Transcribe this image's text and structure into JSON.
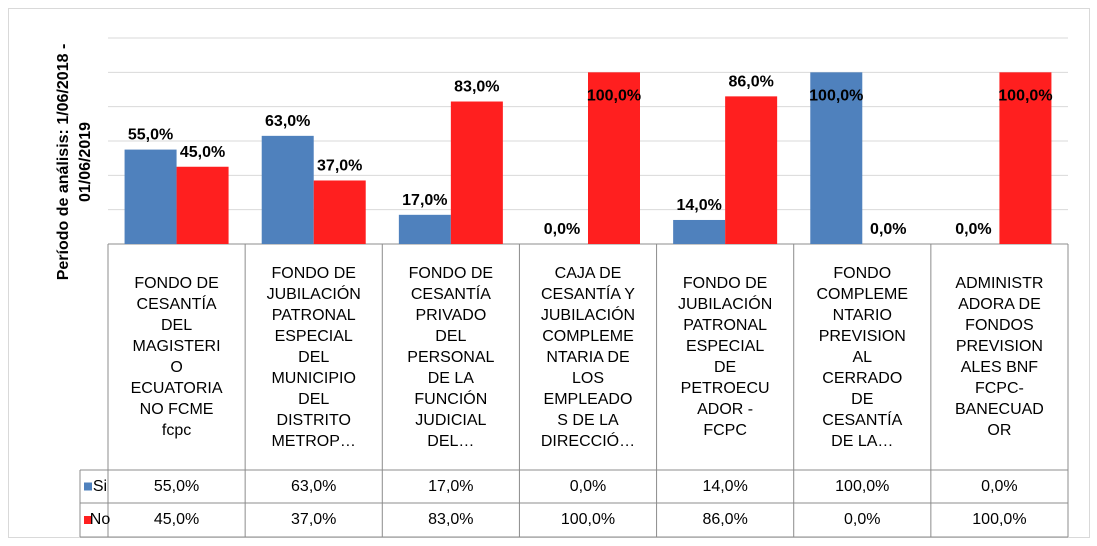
{
  "chart_data": {
    "type": "bar",
    "y_label": "Período de análisis: 1/06/2018 -\n01/06/2019",
    "categories": [
      "FONDO DE\nCESANTÍA\nDEL\nMAGISTERI\nO\nECUATORIA\nNO FCME\nfcpc",
      "FONDO DE\nJUBILACIÓN\nPATRONAL\nESPECIAL\nDEL\nMUNICIPIO\nDEL\nDISTRITO\nMETROP…",
      "FONDO DE\nCESANTÍA\nPRIVADO\nDEL\nPERSONAL\nDE LA\nFUNCIÓN\nJUDICIAL\nDEL…",
      "CAJA DE\nCESANTÍA Y\nJUBILACIÓN\nCOMPLEME\nNTARIA DE\nLOS\nEMPLEADO\nS DE LA\nDIRECCIÓ…",
      "FONDO DE\nJUBILACIÓN\nPATRONAL\nESPECIAL\nDE\nPETROECU\nADOR -\nFCPC",
      "FONDO\nCOMPLEME\nNTARIO\nPREVISION\nAL\nCERRADO\nDE\nCESANTÍA\nDE LA…",
      "ADMINISTR\nADORA DE\nFONDOS\nPREVISION\nALES BNF\nFCPC-\nBANECUAD\nOR"
    ],
    "series": [
      {
        "name": "Si",
        "color": "#4f81bd",
        "values": [
          55,
          63,
          17,
          0,
          14,
          100,
          0
        ],
        "value_labels": [
          "55,0%",
          "63,0%",
          "17,0%",
          "0,0%",
          "14,0%",
          "100,0%",
          "0,0%"
        ]
      },
      {
        "name": "No",
        "color": "#ff1f1f",
        "values": [
          45,
          37,
          83,
          100,
          86,
          0,
          100
        ],
        "value_labels": [
          "45,0%",
          "37,0%",
          "83,0%",
          "100,0%",
          "86,0%",
          "0,0%",
          "100,0%"
        ]
      }
    ],
    "ylim": [
      0,
      120
    ],
    "yticks": [
      0,
      20,
      40,
      60,
      80,
      100,
      120
    ],
    "grid": true
  }
}
